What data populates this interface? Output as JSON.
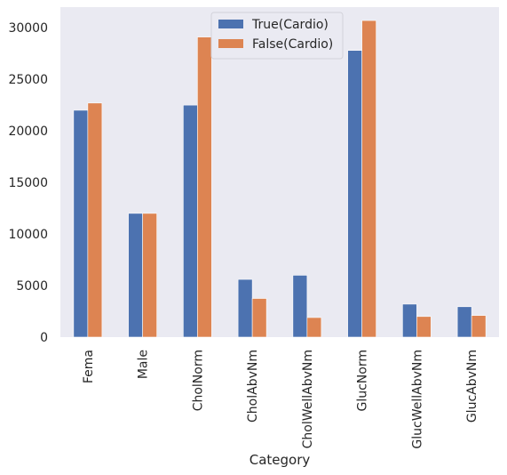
{
  "chart_data": {
    "type": "bar",
    "title": "",
    "xlabel": "Category",
    "ylabel": "",
    "ylim": [
      0,
      32000
    ],
    "yticks": [
      0,
      5000,
      10000,
      15000,
      20000,
      25000,
      30000
    ],
    "categories": [
      "Fema",
      "Male",
      "CholNorm",
      "CholAbvNm",
      "CholWellAbvNm",
      "GlucNorm",
      "GlucWellAbvNm",
      "GlucAbvNm"
    ],
    "series": [
      {
        "name": "True(Cardio)",
        "color": "#4c72b0",
        "values": [
          22000,
          12000,
          22500,
          5600,
          6000,
          27800,
          3200,
          2950
        ]
      },
      {
        "name": "False(Cardio)",
        "color": "#dd8452",
        "values": [
          22700,
          12000,
          29100,
          3750,
          1900,
          30700,
          2000,
          2100
        ]
      }
    ],
    "grid": false,
    "legend_position": "top-center",
    "background_color": "#eaeaf2"
  }
}
